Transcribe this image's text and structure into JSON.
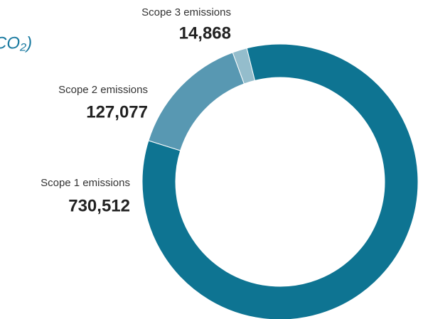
{
  "chart_data": {
    "type": "donut",
    "title": "CO₂)",
    "categories": [
      "Scope 1 emissions",
      "Scope 2 emissions",
      "Scope 3 emissions"
    ],
    "values": [
      730512,
      127077,
      14868
    ],
    "value_labels": [
      "730,512",
      "127,077",
      "14,868"
    ],
    "colors": [
      "#0e7492",
      "#5898b2",
      "#94bdcc"
    ]
  }
}
